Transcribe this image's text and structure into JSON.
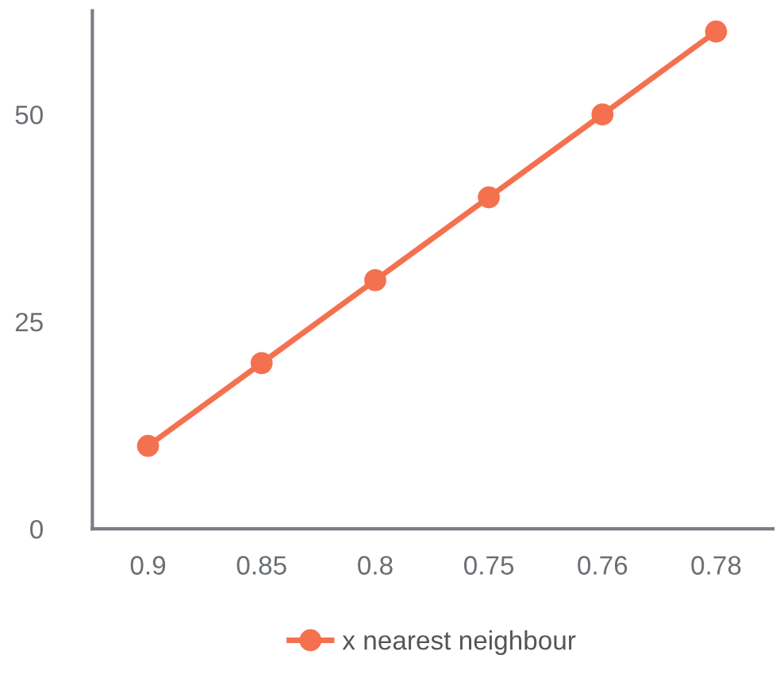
{
  "chart_data": {
    "type": "line",
    "categories": [
      "0.9",
      "0.85",
      "0.8",
      "0.75",
      "0.76",
      "0.78"
    ],
    "series": [
      {
        "name": "x nearest neighbour",
        "color": "#f4714f",
        "values": [
          10,
          20,
          30,
          40,
          50,
          60
        ]
      }
    ],
    "ylim": [
      0,
      62.5
    ],
    "yticks": [
      0,
      25,
      50
    ],
    "marker": "circle",
    "line_style": "solid",
    "grid": false,
    "legend": "bottom"
  }
}
